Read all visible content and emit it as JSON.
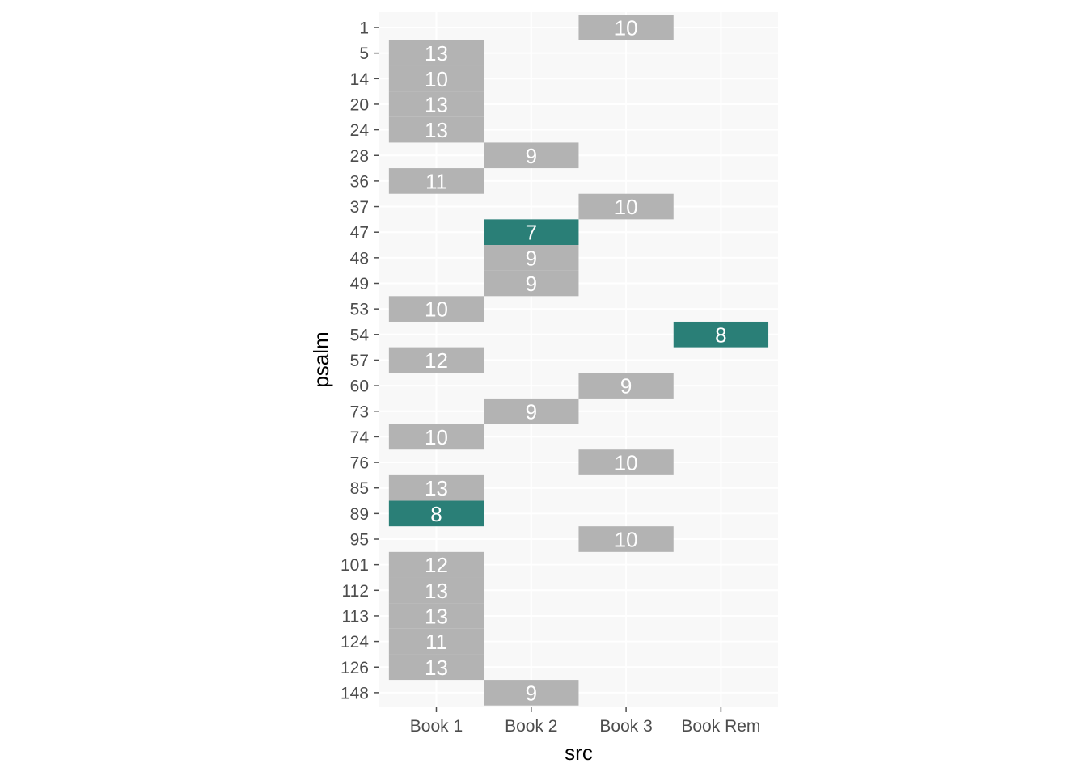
{
  "chart_data": {
    "type": "heatmap",
    "xlabel": "src",
    "ylabel": "psalm",
    "x_categories": [
      "Book 1",
      "Book 2",
      "Book 3",
      "Book Rem"
    ],
    "y_categories": [
      "1",
      "5",
      "14",
      "20",
      "24",
      "28",
      "36",
      "37",
      "47",
      "48",
      "49",
      "53",
      "54",
      "57",
      "60",
      "73",
      "74",
      "76",
      "85",
      "89",
      "95",
      "101",
      "112",
      "113",
      "124",
      "126",
      "148"
    ],
    "colors": {
      "default": "#b3b3b3",
      "highlight": "#2a7f77",
      "panel": "#f8f8f8",
      "grid": "#ffffff",
      "label": "#ffffff"
    },
    "grid": true,
    "cells": [
      {
        "psalm": "1",
        "src": "Book 3",
        "value": 10,
        "highlight": false
      },
      {
        "psalm": "5",
        "src": "Book 1",
        "value": 13,
        "highlight": false
      },
      {
        "psalm": "14",
        "src": "Book 1",
        "value": 10,
        "highlight": false
      },
      {
        "psalm": "20",
        "src": "Book 1",
        "value": 13,
        "highlight": false
      },
      {
        "psalm": "24",
        "src": "Book 1",
        "value": 13,
        "highlight": false
      },
      {
        "psalm": "28",
        "src": "Book 2",
        "value": 9,
        "highlight": false
      },
      {
        "psalm": "36",
        "src": "Book 1",
        "value": 11,
        "highlight": false
      },
      {
        "psalm": "37",
        "src": "Book 3",
        "value": 10,
        "highlight": false
      },
      {
        "psalm": "47",
        "src": "Book 2",
        "value": 7,
        "highlight": true
      },
      {
        "psalm": "48",
        "src": "Book 2",
        "value": 9,
        "highlight": false
      },
      {
        "psalm": "49",
        "src": "Book 2",
        "value": 9,
        "highlight": false
      },
      {
        "psalm": "53",
        "src": "Book 1",
        "value": 10,
        "highlight": false
      },
      {
        "psalm": "54",
        "src": "Book Rem",
        "value": 8,
        "highlight": true
      },
      {
        "psalm": "57",
        "src": "Book 1",
        "value": 12,
        "highlight": false
      },
      {
        "psalm": "60",
        "src": "Book 3",
        "value": 9,
        "highlight": false
      },
      {
        "psalm": "73",
        "src": "Book 2",
        "value": 9,
        "highlight": false
      },
      {
        "psalm": "74",
        "src": "Book 1",
        "value": 10,
        "highlight": false
      },
      {
        "psalm": "76",
        "src": "Book 3",
        "value": 10,
        "highlight": false
      },
      {
        "psalm": "85",
        "src": "Book 1",
        "value": 13,
        "highlight": false
      },
      {
        "psalm": "89",
        "src": "Book 1",
        "value": 8,
        "highlight": true
      },
      {
        "psalm": "95",
        "src": "Book 3",
        "value": 10,
        "highlight": false
      },
      {
        "psalm": "101",
        "src": "Book 1",
        "value": 12,
        "highlight": false
      },
      {
        "psalm": "112",
        "src": "Book 1",
        "value": 13,
        "highlight": false
      },
      {
        "psalm": "113",
        "src": "Book 1",
        "value": 13,
        "highlight": false
      },
      {
        "psalm": "124",
        "src": "Book 1",
        "value": 11,
        "highlight": false
      },
      {
        "psalm": "126",
        "src": "Book 1",
        "value": 13,
        "highlight": false
      },
      {
        "psalm": "148",
        "src": "Book 2",
        "value": 9,
        "highlight": false
      }
    ]
  }
}
